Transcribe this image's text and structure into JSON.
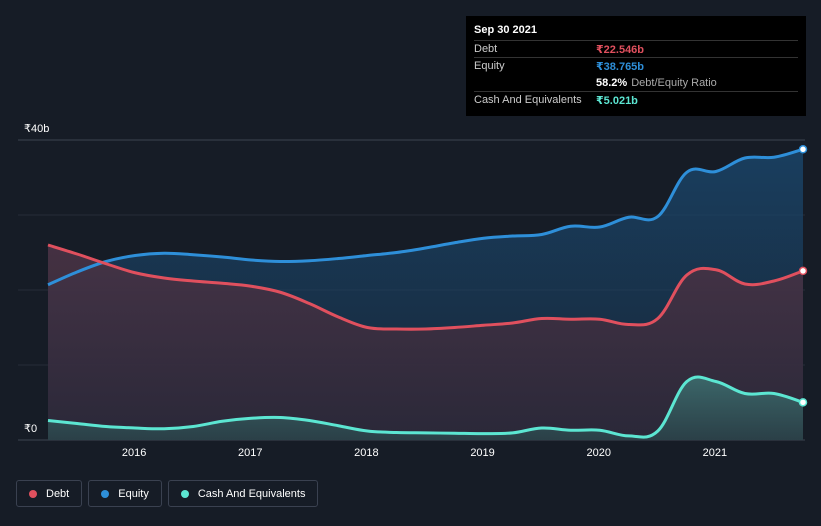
{
  "tooltip": {
    "date": "Sep 30 2021",
    "debt_label": "Debt",
    "debt_value": "₹22.546b",
    "equity_label": "Equity",
    "equity_value": "₹38.765b",
    "ratio_value": "58.2%",
    "ratio_label": "Debt/Equity Ratio",
    "cash_label": "Cash And Equivalents",
    "cash_value": "₹5.021b"
  },
  "colors": {
    "debt": "#e0505e",
    "equity": "#2e8fd9",
    "cash": "#5ce6d2",
    "background": "#161c26"
  },
  "legend": [
    {
      "label": "Debt",
      "color": "#e0505e"
    },
    {
      "label": "Equity",
      "color": "#2e8fd9"
    },
    {
      "label": "Cash And Equivalents",
      "color": "#5ce6d2"
    }
  ],
  "chart_data": {
    "type": "area",
    "ylim": [
      0,
      40
    ],
    "y_unit": "₹b",
    "y_ticks": [
      {
        "value": 40,
        "label": "₹40b"
      },
      {
        "value": 0,
        "label": "₹0"
      }
    ],
    "x_ticks": [
      "2016",
      "2017",
      "2018",
      "2019",
      "2020",
      "2021"
    ],
    "x_range": [
      2015.1,
      2021.75
    ],
    "series": [
      {
        "name": "Debt",
        "points": [
          [
            2015.25,
            26
          ],
          [
            2015.5,
            24.8
          ],
          [
            2015.75,
            23.5
          ],
          [
            2016.0,
            22.3
          ],
          [
            2016.25,
            21.6
          ],
          [
            2016.5,
            21.2
          ],
          [
            2016.75,
            20.9
          ],
          [
            2017.0,
            20.5
          ],
          [
            2017.25,
            19.7
          ],
          [
            2017.5,
            18.2
          ],
          [
            2017.75,
            16.4
          ],
          [
            2018.0,
            15
          ],
          [
            2018.25,
            14.8
          ],
          [
            2018.5,
            14.8
          ],
          [
            2018.75,
            15
          ],
          [
            2019.0,
            15.3
          ],
          [
            2019.25,
            15.6
          ],
          [
            2019.5,
            16.2
          ],
          [
            2019.75,
            16.1
          ],
          [
            2020.0,
            16.1
          ],
          [
            2020.25,
            15.4
          ],
          [
            2020.5,
            16.2
          ],
          [
            2020.75,
            22
          ],
          [
            2021.0,
            22.7
          ],
          [
            2021.25,
            20.8
          ],
          [
            2021.5,
            21.2
          ],
          [
            2021.75,
            22.546
          ]
        ]
      },
      {
        "name": "Equity",
        "points": [
          [
            2015.25,
            20.7
          ],
          [
            2015.5,
            22.4
          ],
          [
            2015.75,
            23.8
          ],
          [
            2016.0,
            24.6
          ],
          [
            2016.25,
            24.9
          ],
          [
            2016.5,
            24.7
          ],
          [
            2016.75,
            24.4
          ],
          [
            2017.0,
            24
          ],
          [
            2017.25,
            23.8
          ],
          [
            2017.5,
            23.9
          ],
          [
            2017.75,
            24.2
          ],
          [
            2018.0,
            24.6
          ],
          [
            2018.25,
            25
          ],
          [
            2018.5,
            25.6
          ],
          [
            2018.75,
            26.3
          ],
          [
            2019.0,
            26.9
          ],
          [
            2019.25,
            27.2
          ],
          [
            2019.5,
            27.4
          ],
          [
            2019.75,
            28.5
          ],
          [
            2020.0,
            28.4
          ],
          [
            2020.25,
            29.7
          ],
          [
            2020.5,
            29.8
          ],
          [
            2020.75,
            35.7
          ],
          [
            2021.0,
            35.8
          ],
          [
            2021.25,
            37.6
          ],
          [
            2021.5,
            37.7
          ],
          [
            2021.75,
            38.765
          ]
        ]
      },
      {
        "name": "Cash And Equivalents",
        "points": [
          [
            2015.25,
            2.6
          ],
          [
            2015.5,
            2.2
          ],
          [
            2015.75,
            1.8
          ],
          [
            2016.0,
            1.6
          ],
          [
            2016.25,
            1.5
          ],
          [
            2016.5,
            1.8
          ],
          [
            2016.75,
            2.5
          ],
          [
            2017.0,
            2.9
          ],
          [
            2017.25,
            3
          ],
          [
            2017.5,
            2.6
          ],
          [
            2017.75,
            1.9
          ],
          [
            2018.0,
            1.2
          ],
          [
            2018.25,
            1
          ],
          [
            2018.5,
            0.95
          ],
          [
            2018.75,
            0.9
          ],
          [
            2019.0,
            0.85
          ],
          [
            2019.25,
            0.95
          ],
          [
            2019.5,
            1.6
          ],
          [
            2019.75,
            1.3
          ],
          [
            2020.0,
            1.3
          ],
          [
            2020.25,
            0.55
          ],
          [
            2020.5,
            1.2
          ],
          [
            2020.75,
            7.8
          ],
          [
            2021.0,
            7.8
          ],
          [
            2021.25,
            6.2
          ],
          [
            2021.5,
            6.2
          ],
          [
            2021.75,
            5.021
          ]
        ]
      }
    ]
  }
}
